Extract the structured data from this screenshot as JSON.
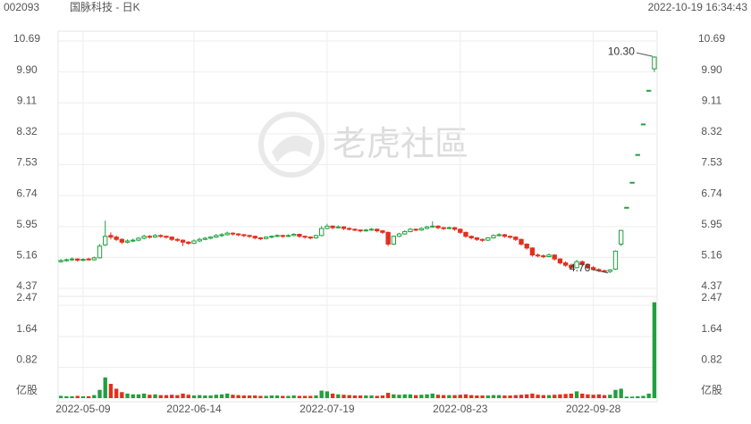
{
  "header": {
    "code": "002093",
    "name": "国脉科技 - 日K",
    "time": "2022-10-19 16:34:43"
  },
  "watermark": "老虎社區",
  "chart_data": {
    "type": "candlestick",
    "up_color": "#20a040",
    "down_color": "#e0311e",
    "ylim": [
      4.37,
      10.69
    ],
    "yticks": [
      4.37,
      5.16,
      5.95,
      6.74,
      7.53,
      8.32,
      9.11,
      {
        "value": 9.9,
        "label": "9.90"
      },
      10.69
    ],
    "volume_ylim": [
      0,
      2.47
    ],
    "volume_yticks": [
      {
        "value": 0,
        "label": "亿股"
      },
      0.82,
      1.64,
      2.47
    ],
    "xticks": [
      {
        "value": 4,
        "label": "2022-05-09"
      },
      {
        "value": 24,
        "label": "2022-06-14"
      },
      {
        "value": 48,
        "label": "2022-07-19"
      },
      {
        "value": 72,
        "label": "2022-08-23"
      },
      {
        "value": 96,
        "label": "2022-09-28"
      }
    ],
    "annotations": [
      {
        "index": 107,
        "value": 10.3,
        "label": "10.30"
      },
      {
        "index": 99,
        "value": 4.76,
        "label": "4.76"
      }
    ],
    "ohlc": [
      [
        5.05,
        5.12,
        5.03,
        5.08
      ],
      [
        5.08,
        5.13,
        5.05,
        5.1
      ],
      [
        5.1,
        5.16,
        5.07,
        5.12
      ],
      [
        5.12,
        5.14,
        5.05,
        5.09
      ],
      [
        5.09,
        5.14,
        5.06,
        5.11
      ],
      [
        5.12,
        5.15,
        5.08,
        5.1
      ],
      [
        5.1,
        5.18,
        5.08,
        5.15
      ],
      [
        5.15,
        5.5,
        5.13,
        5.45
      ],
      [
        5.48,
        6.1,
        5.45,
        5.7
      ],
      [
        5.72,
        5.8,
        5.62,
        5.68
      ],
      [
        5.68,
        5.72,
        5.58,
        5.62
      ],
      [
        5.62,
        5.65,
        5.5,
        5.55
      ],
      [
        5.55,
        5.62,
        5.52,
        5.58
      ],
      [
        5.58,
        5.64,
        5.55,
        5.6
      ],
      [
        5.6,
        5.68,
        5.57,
        5.65
      ],
      [
        5.65,
        5.74,
        5.62,
        5.7
      ],
      [
        5.7,
        5.73,
        5.64,
        5.68
      ],
      [
        5.68,
        5.76,
        5.66,
        5.72
      ],
      [
        5.72,
        5.75,
        5.66,
        5.7
      ],
      [
        5.7,
        5.72,
        5.64,
        5.68
      ],
      [
        5.68,
        5.7,
        5.58,
        5.62
      ],
      [
        5.62,
        5.65,
        5.56,
        5.6
      ],
      [
        5.6,
        5.62,
        5.45,
        5.55
      ],
      [
        5.55,
        5.58,
        5.48,
        5.52
      ],
      [
        5.52,
        5.62,
        5.5,
        5.58
      ],
      [
        5.58,
        5.66,
        5.55,
        5.62
      ],
      [
        5.62,
        5.68,
        5.6,
        5.65
      ],
      [
        5.65,
        5.7,
        5.62,
        5.68
      ],
      [
        5.68,
        5.76,
        5.66,
        5.72
      ],
      [
        5.72,
        5.78,
        5.68,
        5.74
      ],
      [
        5.74,
        5.82,
        5.72,
        5.78
      ],
      [
        5.78,
        5.8,
        5.72,
        5.76
      ],
      [
        5.76,
        5.78,
        5.7,
        5.74
      ],
      [
        5.74,
        5.76,
        5.68,
        5.72
      ],
      [
        5.72,
        5.74,
        5.66,
        5.7
      ],
      [
        5.7,
        5.72,
        5.62,
        5.66
      ],
      [
        5.66,
        5.68,
        5.6,
        5.64
      ],
      [
        5.64,
        5.7,
        5.62,
        5.68
      ],
      [
        5.68,
        5.72,
        5.65,
        5.7
      ],
      [
        5.7,
        5.75,
        5.68,
        5.72
      ],
      [
        5.72,
        5.74,
        5.66,
        5.7
      ],
      [
        5.7,
        5.75,
        5.68,
        5.72
      ],
      [
        5.72,
        5.78,
        5.7,
        5.75
      ],
      [
        5.75,
        5.77,
        5.66,
        5.7
      ],
      [
        5.7,
        5.72,
        5.64,
        5.68
      ],
      [
        5.68,
        5.7,
        5.62,
        5.66
      ],
      [
        5.66,
        5.74,
        5.64,
        5.72
      ],
      [
        5.72,
        5.96,
        5.7,
        5.9
      ],
      [
        5.9,
        6.02,
        5.88,
        5.96
      ],
      [
        5.96,
        5.98,
        5.88,
        5.92
      ],
      [
        5.92,
        5.98,
        5.9,
        5.94
      ],
      [
        5.94,
        5.96,
        5.86,
        5.9
      ],
      [
        5.9,
        5.93,
        5.85,
        5.88
      ],
      [
        5.88,
        5.9,
        5.83,
        5.86
      ],
      [
        5.86,
        5.88,
        5.8,
        5.84
      ],
      [
        5.84,
        5.89,
        5.82,
        5.86
      ],
      [
        5.86,
        5.91,
        5.84,
        5.88
      ],
      [
        5.88,
        5.9,
        5.8,
        5.84
      ],
      [
        5.84,
        5.86,
        5.76,
        5.8
      ],
      [
        5.8,
        5.82,
        5.45,
        5.5
      ],
      [
        5.5,
        5.72,
        5.48,
        5.7
      ],
      [
        5.7,
        5.79,
        5.68,
        5.76
      ],
      [
        5.76,
        5.85,
        5.74,
        5.82
      ],
      [
        5.82,
        5.91,
        5.8,
        5.88
      ],
      [
        5.88,
        5.9,
        5.83,
        5.86
      ],
      [
        5.86,
        5.93,
        5.84,
        5.9
      ],
      [
        5.9,
        5.97,
        5.88,
        5.94
      ],
      [
        5.94,
        6.08,
        5.92,
        5.96
      ],
      [
        5.96,
        5.98,
        5.88,
        5.92
      ],
      [
        5.92,
        5.94,
        5.86,
        5.9
      ],
      [
        5.9,
        5.95,
        5.88,
        5.92
      ],
      [
        5.92,
        5.94,
        5.84,
        5.88
      ],
      [
        5.88,
        5.9,
        5.76,
        5.8
      ],
      [
        5.8,
        5.82,
        5.66,
        5.7
      ],
      [
        5.7,
        5.72,
        5.62,
        5.66
      ],
      [
        5.66,
        5.68,
        5.58,
        5.62
      ],
      [
        5.62,
        5.64,
        5.56,
        5.6
      ],
      [
        5.6,
        5.68,
        5.58,
        5.66
      ],
      [
        5.66,
        5.75,
        5.64,
        5.72
      ],
      [
        5.72,
        5.78,
        5.7,
        5.74
      ],
      [
        5.74,
        5.76,
        5.66,
        5.7
      ],
      [
        5.7,
        5.72,
        5.64,
        5.68
      ],
      [
        5.68,
        5.7,
        5.58,
        5.62
      ],
      [
        5.62,
        5.64,
        5.46,
        5.5
      ],
      [
        5.5,
        5.52,
        5.36,
        5.4
      ],
      [
        5.4,
        5.42,
        5.18,
        5.22
      ],
      [
        5.22,
        5.26,
        5.16,
        5.2
      ],
      [
        5.2,
        5.24,
        5.14,
        5.18
      ],
      [
        5.18,
        5.26,
        5.16,
        5.22
      ],
      [
        5.22,
        5.24,
        5.08,
        5.12
      ],
      [
        5.12,
        5.14,
        4.98,
        5.02
      ],
      [
        5.02,
        5.06,
        4.92,
        4.96
      ],
      [
        4.96,
        5.0,
        4.86,
        4.9
      ],
      [
        4.9,
        5.1,
        4.88,
        5.05
      ],
      [
        5.05,
        5.08,
        4.94,
        4.98
      ],
      [
        4.98,
        5.0,
        4.86,
        4.9
      ],
      [
        4.9,
        4.94,
        4.82,
        4.85
      ],
      [
        4.85,
        4.88,
        4.78,
        4.82
      ],
      [
        4.82,
        4.85,
        4.77,
        4.8
      ],
      [
        4.8,
        4.86,
        4.76,
        4.84
      ],
      [
        4.86,
        5.34,
        4.84,
        5.32
      ],
      [
        5.5,
        5.85,
        5.45,
        5.85
      ],
      [
        6.44,
        6.44,
        6.44,
        6.44
      ],
      [
        7.08,
        7.08,
        7.08,
        7.08
      ],
      [
        7.79,
        7.79,
        7.79,
        7.79
      ],
      [
        8.57,
        8.57,
        8.57,
        8.57
      ],
      [
        9.43,
        9.43,
        9.43,
        9.43
      ],
      [
        9.98,
        10.3,
        9.9,
        10.28
      ]
    ],
    "volume": [
      0.06,
      0.05,
      0.05,
      0.06,
      0.05,
      0.05,
      0.08,
      0.22,
      0.55,
      0.38,
      0.25,
      0.16,
      0.12,
      0.1,
      0.1,
      0.12,
      0.09,
      0.1,
      0.08,
      0.08,
      0.09,
      0.08,
      0.12,
      0.09,
      0.07,
      0.08,
      0.07,
      0.07,
      0.09,
      0.1,
      0.12,
      0.09,
      0.08,
      0.07,
      0.07,
      0.07,
      0.06,
      0.06,
      0.07,
      0.07,
      0.06,
      0.06,
      0.07,
      0.06,
      0.06,
      0.06,
      0.07,
      0.2,
      0.18,
      0.12,
      0.1,
      0.09,
      0.08,
      0.07,
      0.07,
      0.07,
      0.07,
      0.06,
      0.07,
      0.14,
      0.1,
      0.09,
      0.1,
      0.1,
      0.08,
      0.09,
      0.1,
      0.12,
      0.09,
      0.08,
      0.08,
      0.08,
      0.09,
      0.1,
      0.08,
      0.07,
      0.07,
      0.07,
      0.08,
      0.08,
      0.07,
      0.07,
      0.08,
      0.09,
      0.1,
      0.12,
      0.09,
      0.08,
      0.08,
      0.09,
      0.1,
      0.11,
      0.12,
      0.18,
      0.12,
      0.1,
      0.09,
      0.1,
      0.08,
      0.09,
      0.22,
      0.25,
      0.04,
      0.04,
      0.05,
      0.06,
      0.12,
      2.55
    ]
  }
}
